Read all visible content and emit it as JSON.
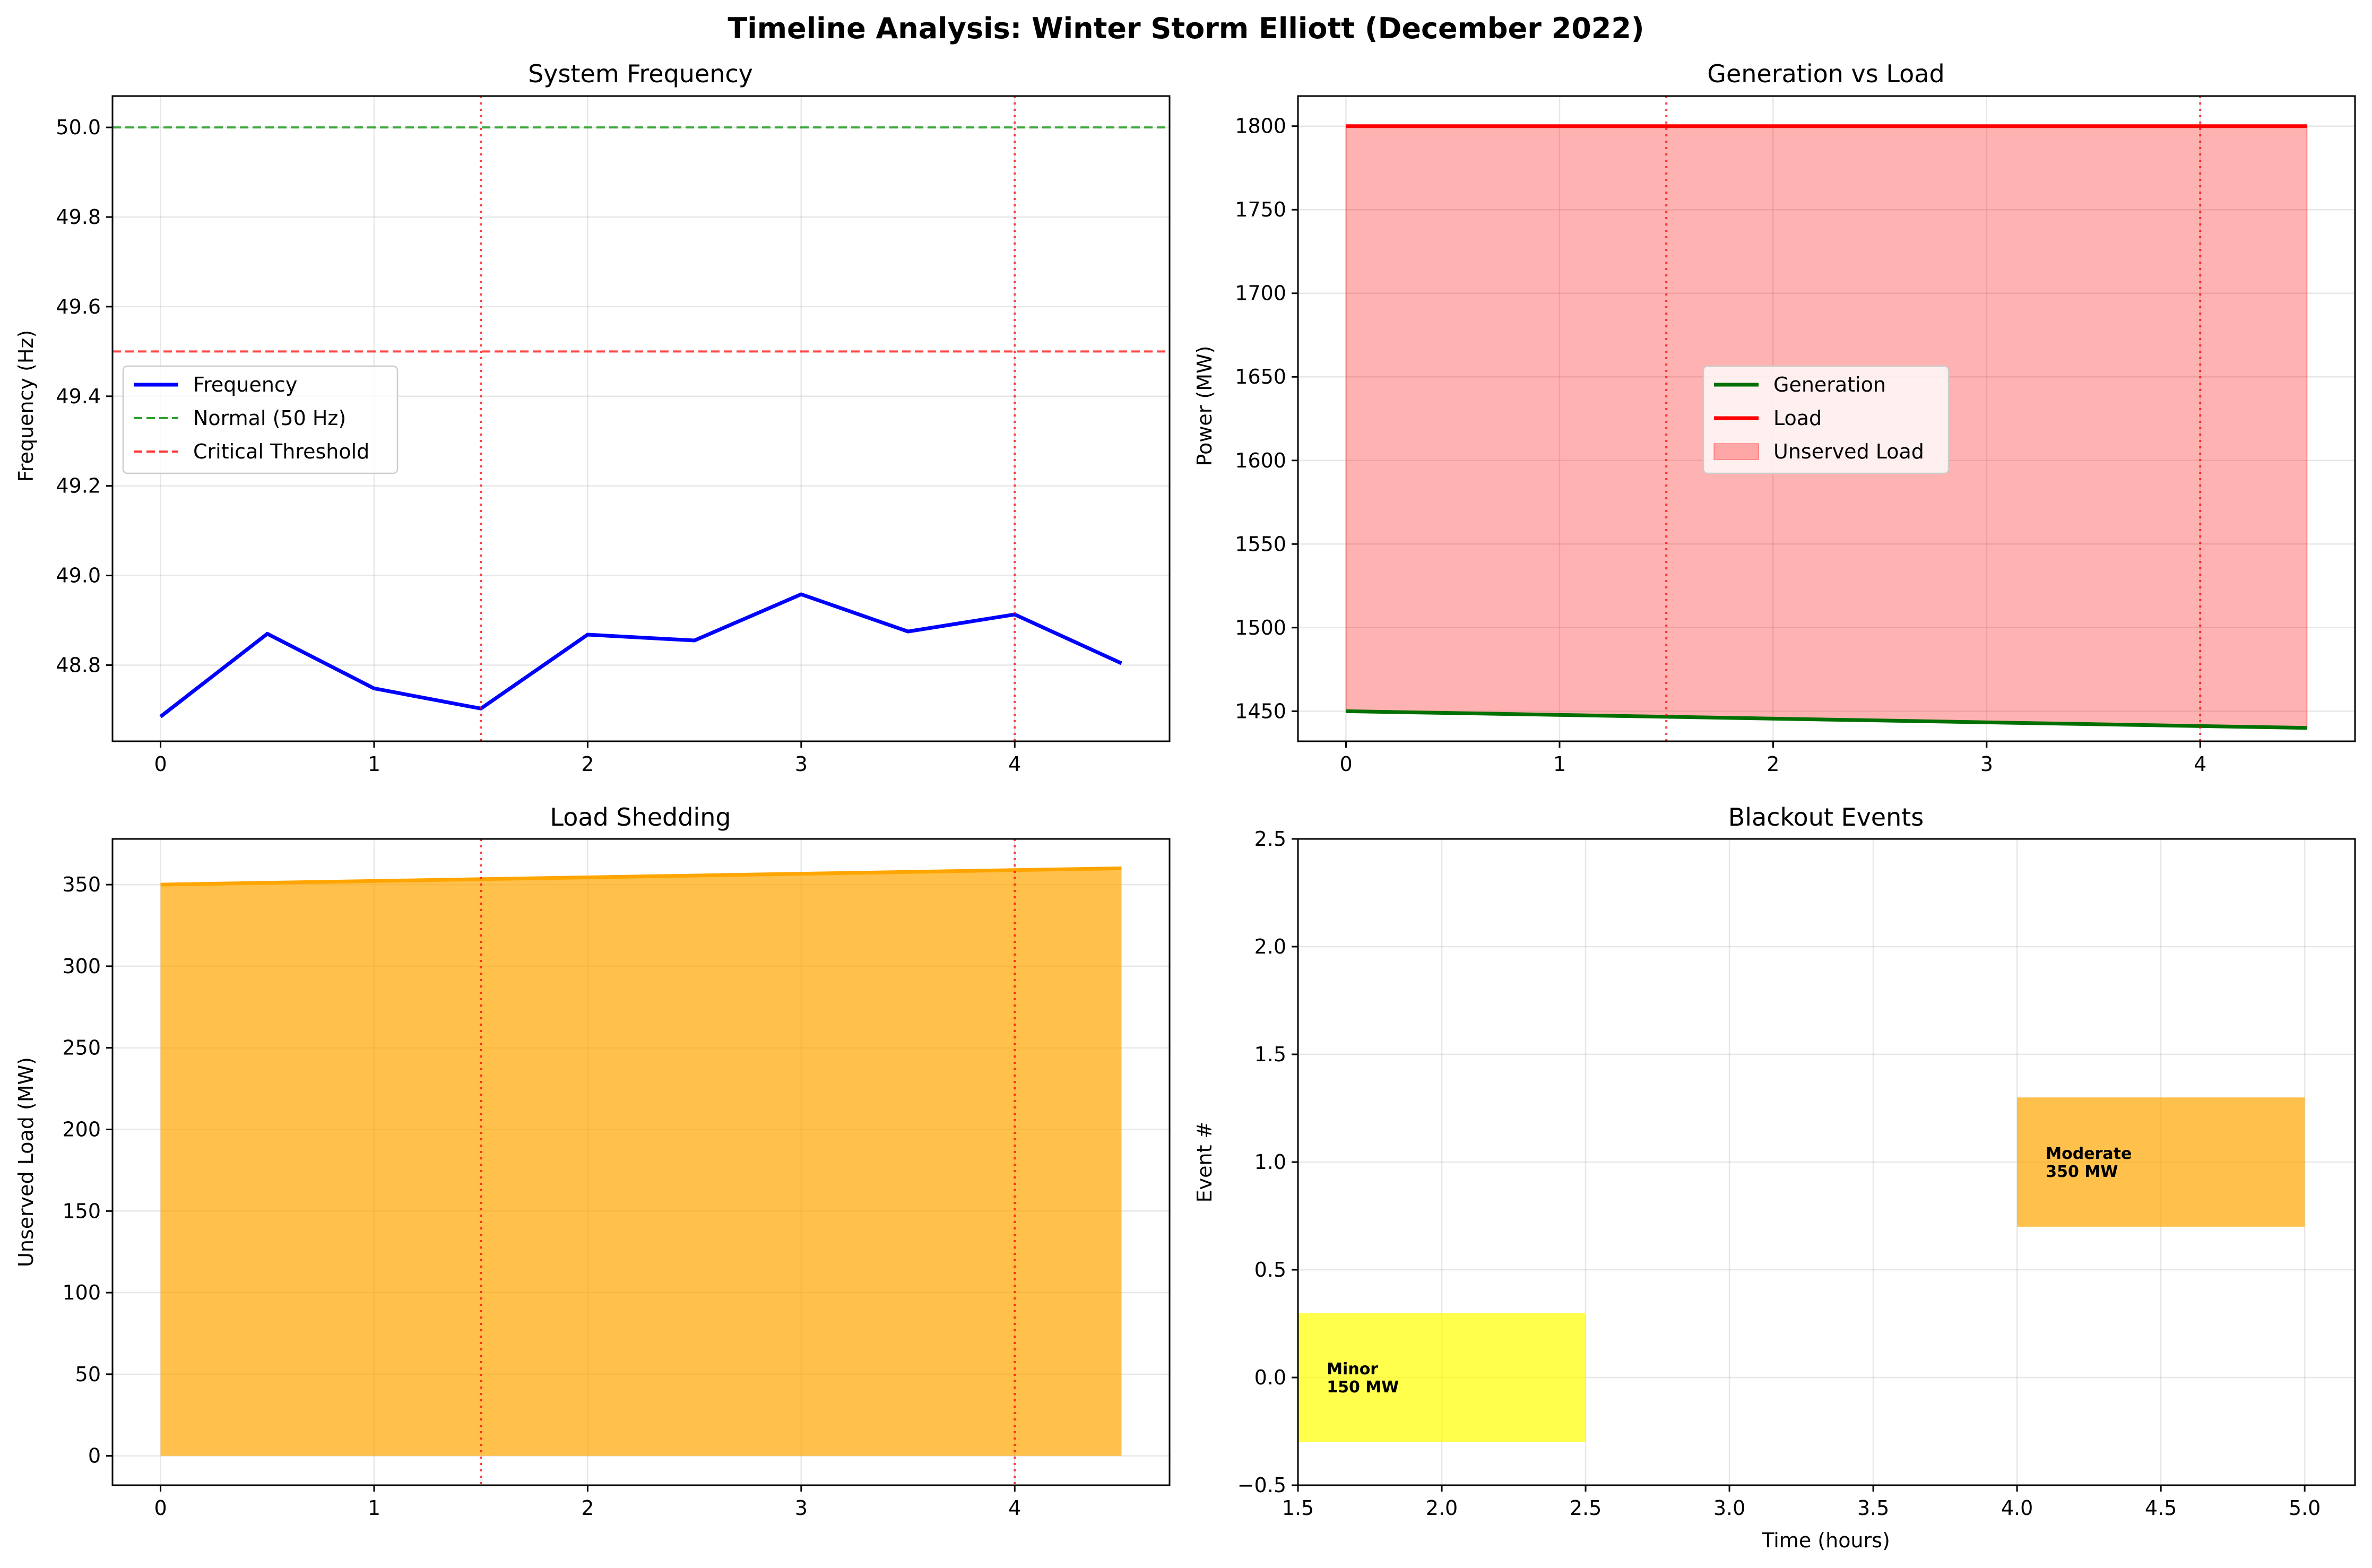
{
  "title": "Timeline Analysis: Winter Storm Elliott (December 2022)",
  "chart_data": [
    {
      "id": "frequency",
      "type": "line",
      "title": "System Frequency",
      "xlabel": "",
      "ylabel": "Frequency (Hz)",
      "xlim": [
        -0.225,
        4.725
      ],
      "ylim": [
        48.63,
        50.07
      ],
      "xticks": [
        0,
        1,
        2,
        3,
        4
      ],
      "yticks": [
        48.8,
        49.0,
        49.2,
        49.4,
        49.6,
        49.8,
        50.0
      ],
      "ytick_labels": [
        "48.8",
        "49.0",
        "49.2",
        "49.4",
        "49.6",
        "49.8",
        "50.0"
      ],
      "grid": true,
      "legend_position": "center-left",
      "x": [
        0,
        0.5,
        1.0,
        1.5,
        2.0,
        2.5,
        3.0,
        3.5,
        4.0,
        4.5
      ],
      "series": [
        {
          "name": "Frequency",
          "values": [
            48.685,
            48.87,
            48.748,
            48.703,
            48.868,
            48.855,
            48.958,
            48.875,
            48.913,
            48.804
          ],
          "color": "#0000ff",
          "style": "solid"
        }
      ],
      "reference_lines": [
        {
          "name": "Normal (50 Hz)",
          "y": 50.0,
          "color": "#2ca02c",
          "style": "dashed"
        },
        {
          "name": "Critical Threshold",
          "y": 49.5,
          "color": "#ff3333",
          "style": "dashed"
        }
      ],
      "event_lines": {
        "x": [
          1.5,
          4.0
        ],
        "color": "#ff0000",
        "style": "dotted"
      }
    },
    {
      "id": "generation",
      "type": "line",
      "title": "Generation vs Load",
      "xlabel": "",
      "ylabel": "Power (MW)",
      "xlim": [
        -0.225,
        4.725
      ],
      "ylim": [
        1432,
        1818
      ],
      "xticks": [
        0,
        1,
        2,
        3,
        4
      ],
      "yticks": [
        1450,
        1500,
        1550,
        1600,
        1650,
        1700,
        1750,
        1800
      ],
      "grid": true,
      "legend_position": "center",
      "x": [
        0,
        4.5
      ],
      "series": [
        {
          "name": "Generation",
          "values": [
            1450,
            1440
          ],
          "color": "#007000",
          "style": "solid"
        },
        {
          "name": "Load",
          "values": [
            1800,
            1800
          ],
          "color": "#ff0000",
          "style": "solid"
        }
      ],
      "fill_between": {
        "name": "Unserved Load",
        "between": [
          "Generation",
          "Load"
        ],
        "color": "#ff0000",
        "alpha": 0.3
      },
      "event_lines": {
        "x": [
          1.5,
          4.0
        ],
        "color": "#ff0000",
        "style": "dotted"
      }
    },
    {
      "id": "shedding",
      "type": "area",
      "title": "Load Shedding",
      "xlabel": "",
      "ylabel": "Unserved Load (MW)",
      "xlim": [
        -0.225,
        4.725
      ],
      "ylim": [
        -18,
        378
      ],
      "xticks": [
        0,
        1,
        2,
        3,
        4
      ],
      "yticks": [
        0,
        50,
        100,
        150,
        200,
        250,
        300,
        350
      ],
      "grid": true,
      "x": [
        0,
        4.5
      ],
      "series": [
        {
          "name": "",
          "values": [
            350,
            360
          ],
          "color": "#ffa500",
          "fill_alpha": 0.7
        }
      ],
      "event_lines": {
        "x": [
          1.5,
          4.0
        ],
        "color": "#ff0000",
        "style": "dotted"
      }
    },
    {
      "id": "blackouts",
      "type": "bar",
      "orientation": "horizontal",
      "title": "Blackout Events",
      "xlabel": "Time (hours)",
      "ylabel": "Event #",
      "xlim": [
        1.5,
        5.175
      ],
      "ylim": [
        -0.5,
        2.5
      ],
      "xticks": [
        1.5,
        2.0,
        2.5,
        3.0,
        3.5,
        4.0,
        4.5,
        5.0
      ],
      "xtick_labels": [
        "1.5",
        "2.0",
        "2.5",
        "3.0",
        "3.5",
        "4.0",
        "4.5",
        "5.0"
      ],
      "yticks": [
        -0.5,
        0.0,
        0.5,
        1.0,
        1.5,
        2.0,
        2.5
      ],
      "ytick_labels": [
        "−0.5",
        "0.0",
        "0.5",
        "1.0",
        "1.5",
        "2.0",
        "2.5"
      ],
      "grid": true,
      "bars": [
        {
          "y": 0,
          "start": 1.5,
          "end": 2.5,
          "height": 0.6,
          "color": "#ffff00",
          "alpha": 0.7,
          "label_line1": "Minor",
          "label_line2": "150 MW"
        },
        {
          "y": 1,
          "start": 4.0,
          "end": 5.0,
          "height": 0.6,
          "color": "#ffa500",
          "alpha": 0.7,
          "label_line1": "Moderate",
          "label_line2": "350 MW"
        }
      ]
    }
  ]
}
